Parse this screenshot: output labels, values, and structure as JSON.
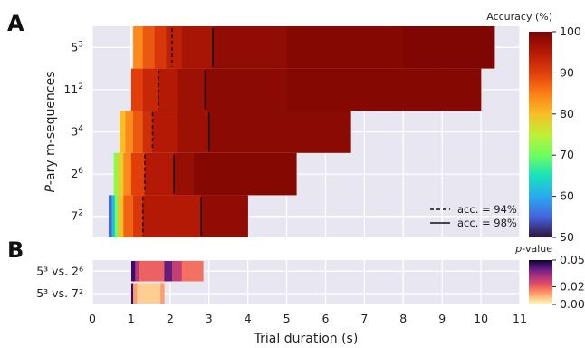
{
  "panels": {
    "a_label": "A",
    "b_label": "B"
  },
  "chart_data": [
    {
      "panel": "A",
      "type": "heatmap",
      "xlabel": "Trial duration (s)",
      "ylabel": "P-ary m-sequences",
      "xlim": [
        0,
        11
      ],
      "xticks": [
        "0",
        "1",
        "2",
        "3",
        "4",
        "5",
        "6",
        "7",
        "8",
        "9",
        "10",
        "11"
      ],
      "grid": true,
      "colorbar": {
        "title": "Accuracy (%)",
        "range": [
          50,
          100
        ],
        "ticks": [
          "50",
          "60",
          "70",
          "80",
          "90",
          "100"
        ],
        "colormap": "turbo"
      },
      "legend": {
        "placement": "lower-right",
        "entries": [
          {
            "label": "acc. = 94%",
            "style": "dashed"
          },
          {
            "label": "acc. = 98%",
            "style": "solid"
          }
        ]
      },
      "rows": [
        {
          "label": "5",
          "sup": "3",
          "segments": [
            {
              "x0": 1.05,
              "x1": 1.3,
              "acc": 84
            },
            {
              "x0": 1.3,
              "x1": 1.6,
              "acc": 88
            },
            {
              "x0": 1.6,
              "x1": 1.9,
              "acc": 91
            },
            {
              "x0": 1.9,
              "x1": 2.3,
              "acc": 94
            },
            {
              "x0": 2.3,
              "x1": 3.1,
              "acc": 96
            },
            {
              "x0": 3.1,
              "x1": 5.0,
              "acc": 98
            },
            {
              "x0": 5.0,
              "x1": 8.0,
              "acc": 99
            },
            {
              "x0": 8.0,
              "x1": 10.35,
              "acc": 99.5
            }
          ],
          "acc94": 2.05,
          "acc98": 3.1
        },
        {
          "label": "11",
          "sup": "2",
          "segments": [
            {
              "x0": 1.0,
              "x1": 1.3,
              "acc": 90
            },
            {
              "x0": 1.3,
              "x1": 1.7,
              "acc": 93
            },
            {
              "x0": 1.7,
              "x1": 2.2,
              "acc": 95
            },
            {
              "x0": 2.2,
              "x1": 2.9,
              "acc": 97
            },
            {
              "x0": 2.9,
              "x1": 5.0,
              "acc": 98.5
            },
            {
              "x0": 5.0,
              "x1": 10.0,
              "acc": 99
            }
          ],
          "acc94": 1.7,
          "acc98": 2.9
        },
        {
          "label": "3",
          "sup": "4",
          "segments": [
            {
              "x0": 0.7,
              "x1": 0.85,
              "acc": 80
            },
            {
              "x0": 0.85,
              "x1": 1.05,
              "acc": 84
            },
            {
              "x0": 1.05,
              "x1": 1.3,
              "acc": 88
            },
            {
              "x0": 1.3,
              "x1": 1.55,
              "acc": 92
            },
            {
              "x0": 1.55,
              "x1": 2.2,
              "acc": 95
            },
            {
              "x0": 2.2,
              "x1": 3.0,
              "acc": 97
            },
            {
              "x0": 3.0,
              "x1": 6.65,
              "acc": 98.5
            }
          ],
          "acc94": 1.55,
          "acc98": 3.0
        },
        {
          "label": "2",
          "sup": "6",
          "segments": [
            {
              "x0": 0.55,
              "x1": 0.65,
              "acc": 72
            },
            {
              "x0": 0.65,
              "x1": 0.8,
              "acc": 78
            },
            {
              "x0": 0.8,
              "x1": 1.0,
              "acc": 84
            },
            {
              "x0": 1.0,
              "x1": 1.35,
              "acc": 90
            },
            {
              "x0": 1.35,
              "x1": 2.1,
              "acc": 95
            },
            {
              "x0": 2.1,
              "x1": 2.6,
              "acc": 97.5
            },
            {
              "x0": 2.6,
              "x1": 5.25,
              "acc": 99
            }
          ],
          "acc94": 1.35,
          "acc98": 2.1
        },
        {
          "label": "7",
          "sup": "2",
          "segments": [
            {
              "x0": 0.42,
              "x1": 0.5,
              "acc": 55
            },
            {
              "x0": 0.5,
              "x1": 0.58,
              "acc": 62
            },
            {
              "x0": 0.58,
              "x1": 0.66,
              "acc": 70
            },
            {
              "x0": 0.66,
              "x1": 0.8,
              "acc": 80
            },
            {
              "x0": 0.8,
              "x1": 1.05,
              "acc": 87
            },
            {
              "x0": 1.05,
              "x1": 1.3,
              "acc": 91
            },
            {
              "x0": 1.3,
              "x1": 2.8,
              "acc": 95
            },
            {
              "x0": 2.8,
              "x1": 4.0,
              "acc": 98
            }
          ],
          "acc94": 1.3,
          "acc98": 2.8
        }
      ]
    },
    {
      "panel": "B",
      "type": "heatmap",
      "xlabel": "Trial duration (s)",
      "ylabel": "",
      "xlim": [
        0,
        11
      ],
      "xticks": [
        "0",
        "1",
        "2",
        "3",
        "4",
        "5",
        "6",
        "7",
        "8",
        "9",
        "10",
        "11"
      ],
      "grid": true,
      "colorbar": {
        "title": "p-value",
        "range": [
          0,
          0.05
        ],
        "ticks": [
          "0.00",
          "0.02",
          "0.05"
        ],
        "colormap": "magma_r"
      },
      "rows": [
        {
          "label": "5³ vs. 2⁶",
          "segments": [
            {
              "x0": 1.0,
              "x1": 1.1,
              "p": 0.045
            },
            {
              "x0": 1.1,
              "x1": 1.2,
              "p": 0.03
            },
            {
              "x0": 1.2,
              "x1": 1.85,
              "p": 0.02
            },
            {
              "x0": 1.85,
              "x1": 2.05,
              "p": 0.04
            },
            {
              "x0": 2.05,
              "x1": 2.3,
              "p": 0.028
            },
            {
              "x0": 2.3,
              "x1": 2.85,
              "p": 0.018
            }
          ]
        },
        {
          "label": "5³ vs. 7²",
          "segments": [
            {
              "x0": 1.0,
              "x1": 1.05,
              "p": 0.045
            },
            {
              "x0": 1.05,
              "x1": 1.15,
              "p": 0.012
            },
            {
              "x0": 1.15,
              "x1": 1.75,
              "p": 0.006
            },
            {
              "x0": 1.75,
              "x1": 1.85,
              "p": 0.012
            }
          ]
        }
      ]
    }
  ]
}
